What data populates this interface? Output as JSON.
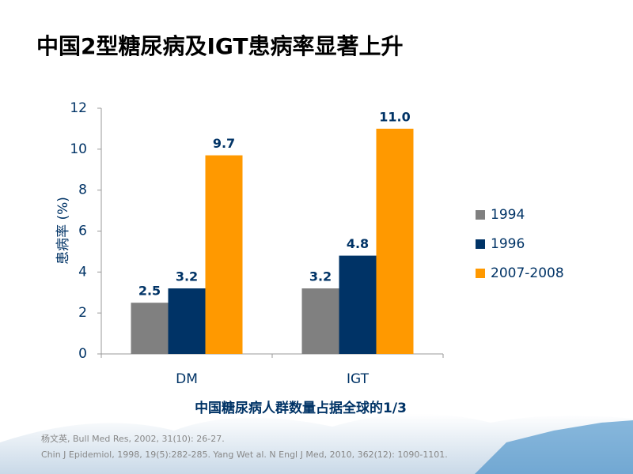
{
  "chart_data": {
    "type": "bar",
    "title": "中国2型糖尿病及IGT患病率显著上升",
    "y_label": "患病率 (%)",
    "subtitle": "中国糖尿病人群数量占据全球的1/3",
    "categories": [
      "DM",
      "IGT"
    ],
    "series": [
      {
        "name": "1994",
        "color": "#808080",
        "values": [
          2.5,
          3.2
        ],
        "value_labels": [
          "2.5",
          "3.2"
        ]
      },
      {
        "name": "1996",
        "color": "#003366",
        "values": [
          3.2,
          4.8
        ],
        "value_labels": [
          "3.2",
          "4.8"
        ]
      },
      {
        "name": "2007-2008",
        "color": "#ff9900",
        "values": [
          9.7,
          11.0
        ],
        "value_labels": [
          "9.7",
          "11.0"
        ]
      }
    ],
    "ylim": [
      0,
      12
    ],
    "yticks": [
      0,
      2,
      4,
      6,
      8,
      10,
      12
    ],
    "grid": false,
    "legend": "right",
    "footnotes": [
      "杨文英, Bull Med Res, 2002, 31(10): 26-27.",
      "Chin J Epidemiol,  1998, 19(5):282-285.    Yang Wet al. N Engl J Med, 2010, 362(12): 1090-1101."
    ]
  }
}
